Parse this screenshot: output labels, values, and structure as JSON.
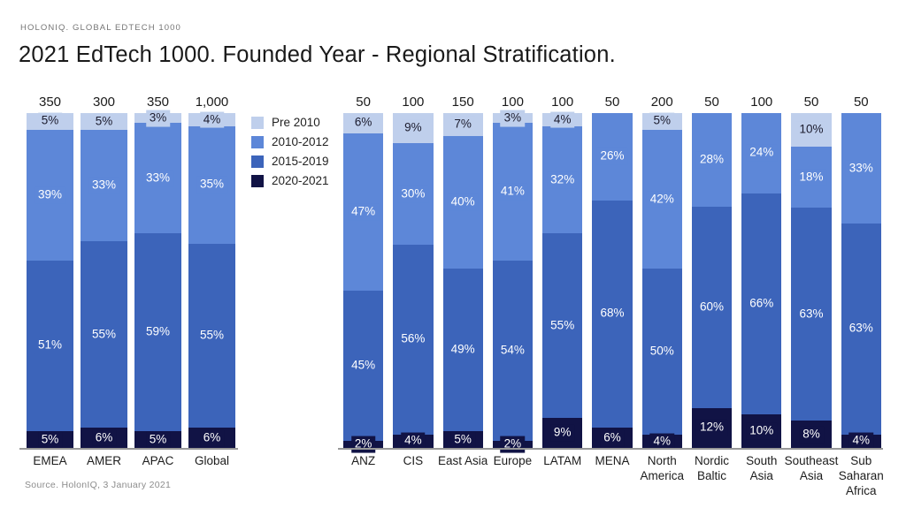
{
  "header": {
    "eyebrow": "HOLONIQ. GLOBAL EDTECH 1000",
    "title": "2021 EdTech 1000. Founded Year - Regional Stratification."
  },
  "source": "Source. HolonIQ, 3 January 2021",
  "chart_data": {
    "type": "bar",
    "stacked": true,
    "value_unit": "%",
    "legend_position": "between-charts-top",
    "grid": false,
    "series": [
      {
        "label": "Pre 2010",
        "color": "#bfcfec",
        "label_color": "#1c1c2e"
      },
      {
        "label": "2010-2012",
        "color": "#5d87d8",
        "label_color": "#ffffff"
      },
      {
        "label": "2015-2019",
        "color": "#3c64ba",
        "label_color": "#ffffff"
      },
      {
        "label": "2020-2021",
        "color": "#111345",
        "label_color": "#ffffff"
      }
    ],
    "groups": [
      {
        "id": "aggregate",
        "bars": [
          {
            "label": "EMEA",
            "total": "350",
            "values": [
              5,
              39,
              51,
              5
            ]
          },
          {
            "label": "AMER",
            "total": "300",
            "values": [
              5,
              33,
              55,
              6
            ]
          },
          {
            "label": "APAC",
            "total": "350",
            "values": [
              3,
              33,
              59,
              5
            ]
          },
          {
            "label": "Global",
            "total": "1,000",
            "values": [
              4,
              35,
              55,
              6
            ]
          }
        ]
      },
      {
        "id": "regional",
        "bars": [
          {
            "label": "ANZ",
            "total": "50",
            "values": [
              6,
              47,
              45,
              2
            ]
          },
          {
            "label": "CIS",
            "total": "100",
            "values": [
              9,
              30,
              56,
              4
            ]
          },
          {
            "label": "East Asia",
            "total": "150",
            "values": [
              7,
              40,
              49,
              5
            ]
          },
          {
            "label": "Europe",
            "total": "100",
            "values": [
              3,
              41,
              54,
              2
            ]
          },
          {
            "label": "LATAM",
            "total": "100",
            "values": [
              4,
              32,
              55,
              9
            ]
          },
          {
            "label": "MENA",
            "total": "50",
            "values": [
              null,
              26,
              68,
              6
            ]
          },
          {
            "label": "North America",
            "total": "200",
            "values": [
              5,
              42,
              50,
              4
            ]
          },
          {
            "label": "Nordic Baltic",
            "total": "50",
            "values": [
              null,
              28,
              60,
              12
            ]
          },
          {
            "label": "South Asia",
            "total": "100",
            "values": [
              null,
              24,
              66,
              10
            ]
          },
          {
            "label": "Southeast Asia",
            "total": "50",
            "values": [
              10,
              18,
              63,
              8
            ]
          },
          {
            "label": "Sub Saharan Africa",
            "total": "50",
            "values": [
              null,
              33,
              63,
              4
            ]
          }
        ]
      }
    ]
  }
}
